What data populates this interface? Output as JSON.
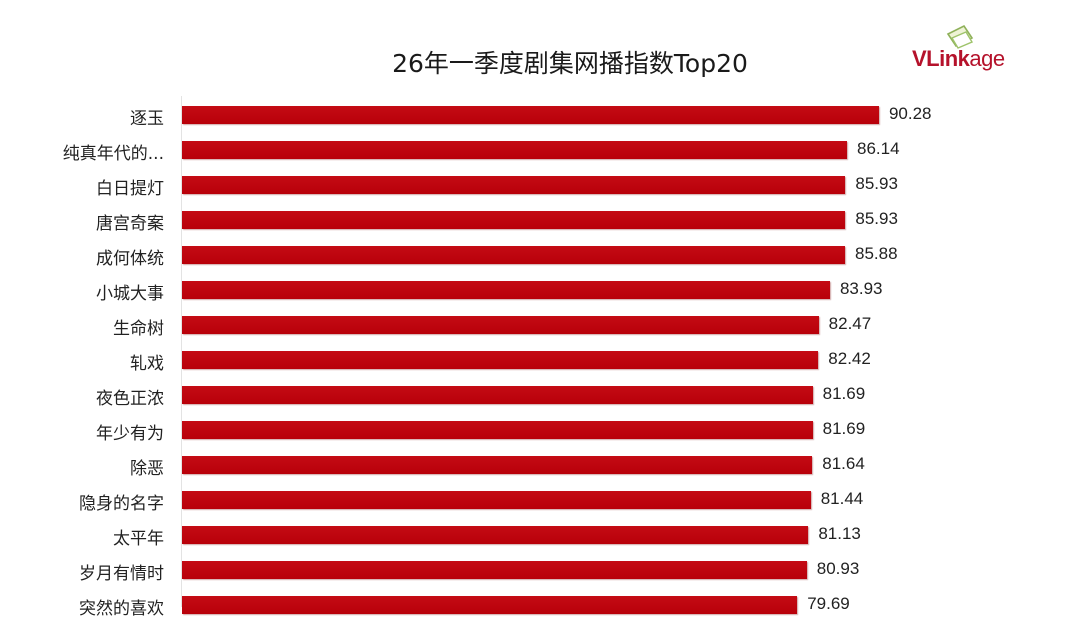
{
  "header": {
    "title": "26年一季度剧集网播指数Top20",
    "logo": {
      "bold": "VLink",
      "light": "age",
      "icon": "vlinkage-cards-icon"
    }
  },
  "colors": {
    "bar": "#c00000",
    "logo": "#b5122b"
  },
  "rows": [
    {
      "label": "逐玉",
      "value": "90.28"
    },
    {
      "label": "纯真年代的...",
      "value": "86.14"
    },
    {
      "label": "白日提灯",
      "value": "85.93"
    },
    {
      "label": "唐宫奇案",
      "value": "85.93"
    },
    {
      "label": "成何体统",
      "value": "85.88"
    },
    {
      "label": "小城大事",
      "value": "83.93"
    },
    {
      "label": "生命树",
      "value": "82.47"
    },
    {
      "label": "轧戏",
      "value": "82.42"
    },
    {
      "label": "夜色正浓",
      "value": "81.69"
    },
    {
      "label": "年少有为",
      "value": "81.69"
    },
    {
      "label": "除恶",
      "value": "81.64"
    },
    {
      "label": "隐身的名字",
      "value": "81.44"
    },
    {
      "label": "太平年",
      "value": "81.13"
    },
    {
      "label": "岁月有情时",
      "value": "80.93"
    },
    {
      "label": "突然的喜欢",
      "value": "79.69"
    }
  ],
  "chart_data": {
    "type": "bar",
    "orientation": "horizontal",
    "title": "26年一季度剧集网播指数Top20",
    "categories": [
      "逐玉",
      "纯真年代的...",
      "白日提灯",
      "唐宫奇案",
      "成何体统",
      "小城大事",
      "生命树",
      "轧戏",
      "夜色正浓",
      "年少有为",
      "除恶",
      "隐身的名字",
      "太平年",
      "岁月有情时",
      "突然的喜欢"
    ],
    "values": [
      90.28,
      86.14,
      85.93,
      85.93,
      85.88,
      83.93,
      82.47,
      82.42,
      81.69,
      81.69,
      81.64,
      81.44,
      81.13,
      80.93,
      79.69
    ],
    "xlabel": "",
    "ylabel": "",
    "data_labels": true,
    "grid": false,
    "legend": "none",
    "bar_color": "#c00000",
    "note": "Only first 15 of Top20 visible; image cropped at bottom"
  }
}
